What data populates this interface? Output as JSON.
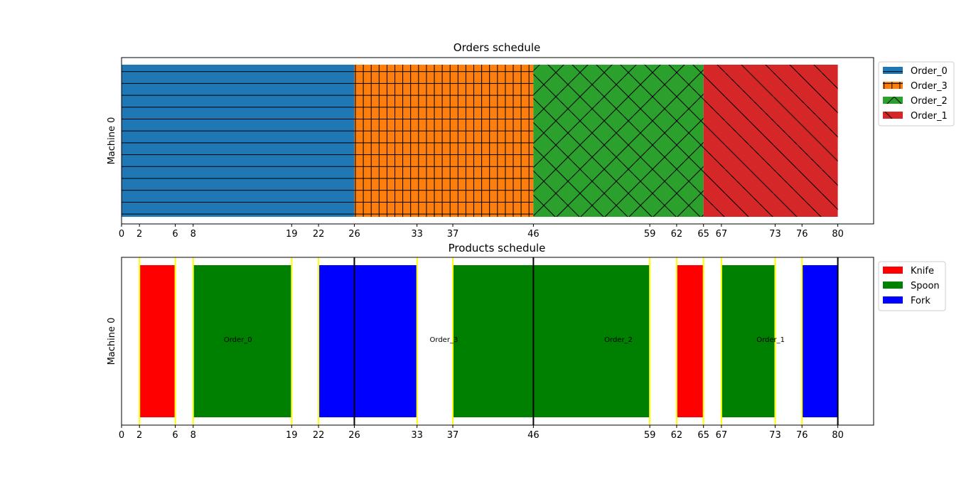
{
  "chart_data": [
    {
      "type": "bar",
      "orientation": "horizontal",
      "title": "Orders schedule",
      "ylabel": "Machine 0",
      "xlim": [
        0,
        84
      ],
      "xticks": [
        0,
        2,
        6,
        8,
        19,
        22,
        26,
        33,
        37,
        46,
        59,
        62,
        65,
        67,
        73,
        76,
        80
      ],
      "legend_position": "upper-right-outside",
      "series": [
        {
          "name": "Order_0",
          "start": 0,
          "end": 26,
          "color": "#1f77b4",
          "hatch": "horizontal"
        },
        {
          "name": "Order_3",
          "start": 26,
          "end": 46,
          "color": "#ff7f0e",
          "hatch": "grid"
        },
        {
          "name": "Order_2",
          "start": 46,
          "end": 65,
          "color": "#2ca02c",
          "hatch": "cross-diagonal"
        },
        {
          "name": "Order_1",
          "start": 65,
          "end": 80,
          "color": "#d62728",
          "hatch": "diagonal"
        }
      ]
    },
    {
      "type": "bar",
      "orientation": "horizontal",
      "title": "Products schedule",
      "ylabel": "Machine 0",
      "xlim": [
        0,
        84
      ],
      "xticks": [
        0,
        2,
        6,
        8,
        19,
        22,
        26,
        33,
        37,
        46,
        59,
        62,
        65,
        67,
        73,
        76,
        80
      ],
      "legend_position": "upper-right-outside",
      "legend": [
        {
          "name": "Knife",
          "color": "#ff0000"
        },
        {
          "name": "Spoon",
          "color": "#008000"
        },
        {
          "name": "Fork",
          "color": "#0000ff"
        }
      ],
      "bars": [
        {
          "product": "Knife",
          "start": 2,
          "end": 6
        },
        {
          "product": "Spoon",
          "start": 8,
          "end": 19
        },
        {
          "product": "Fork",
          "start": 22,
          "end": 33
        },
        {
          "product": "Spoon",
          "start": 37,
          "end": 59
        },
        {
          "product": "Knife",
          "start": 62,
          "end": 65
        },
        {
          "product": "Spoon",
          "start": 67,
          "end": 73
        },
        {
          "product": "Fork",
          "start": 76,
          "end": 80
        }
      ],
      "setup_lines": [
        2,
        6,
        8,
        19,
        22,
        33,
        37,
        59,
        62,
        65,
        67,
        73,
        76
      ],
      "order_boundaries": [
        26,
        46,
        80
      ],
      "annotations": [
        {
          "text": "Order_0",
          "x": 13
        },
        {
          "text": "Order_3",
          "x": 36
        },
        {
          "text": "Order_2",
          "x": 55.5
        },
        {
          "text": "Order_1",
          "x": 72.5
        }
      ],
      "setup_line_color": "#ffff00",
      "boundary_line_color": "#000000"
    }
  ]
}
